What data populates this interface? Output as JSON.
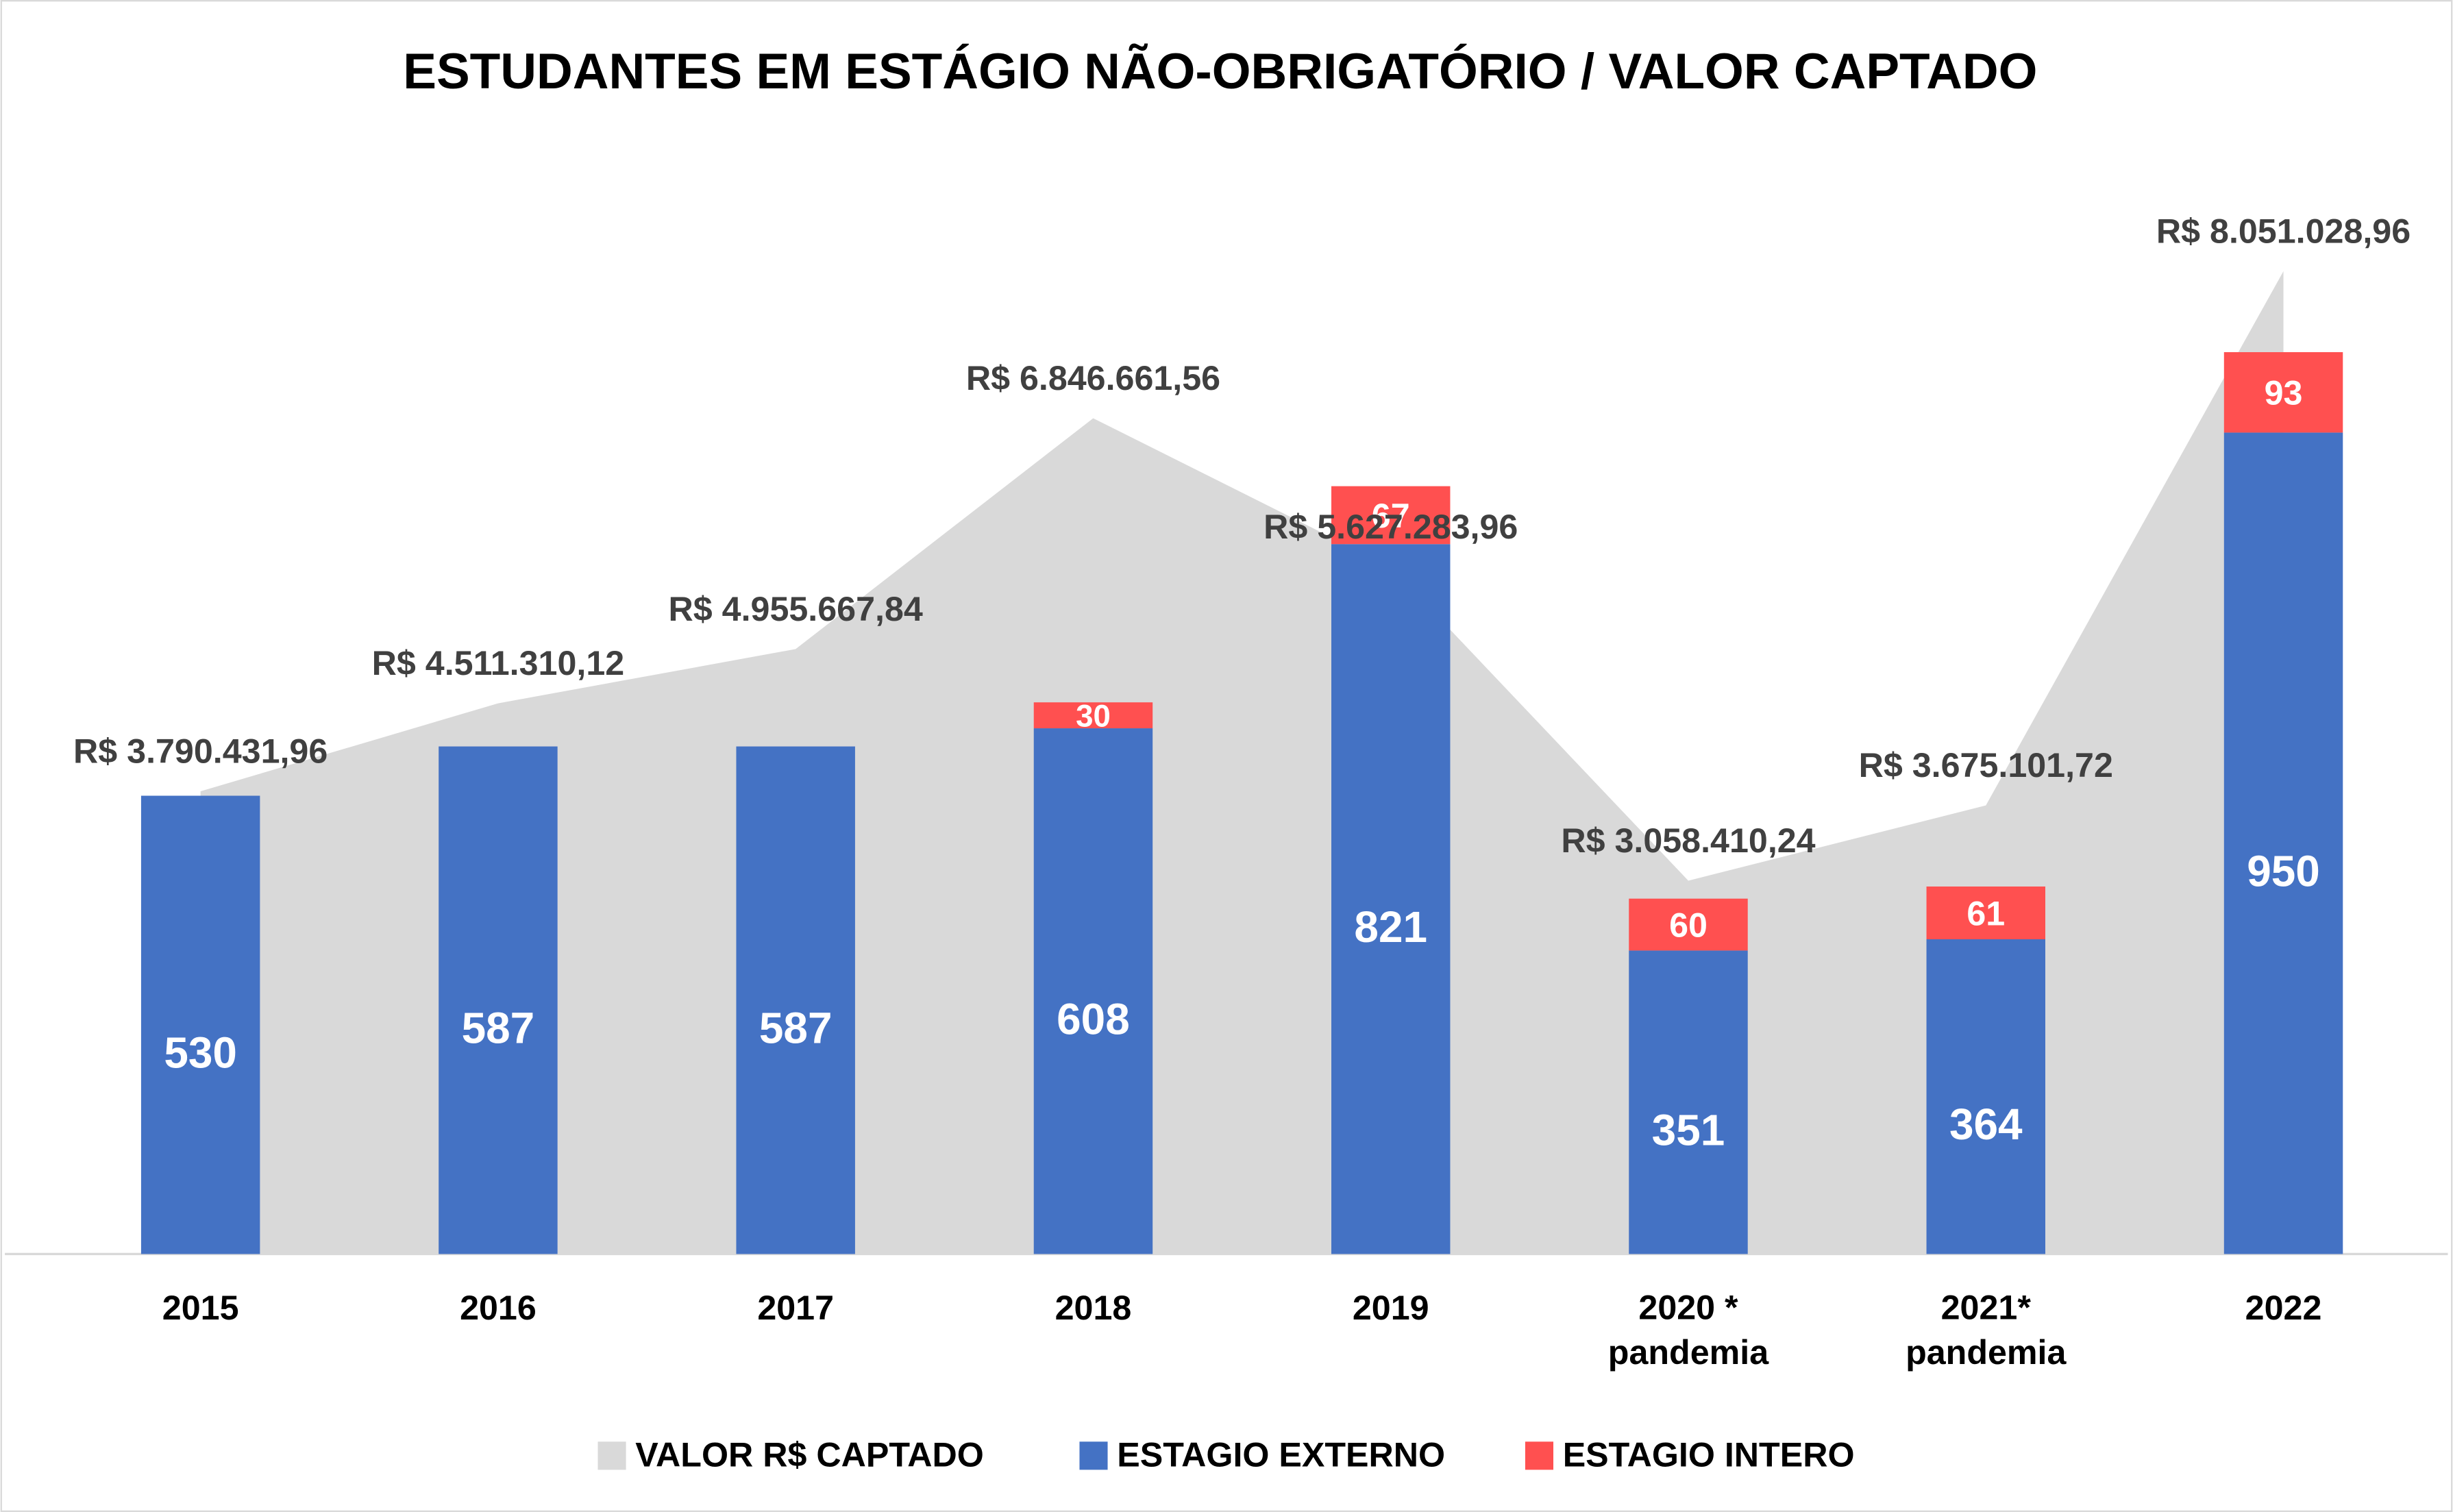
{
  "chart_data": {
    "type": "bar",
    "stacked": true,
    "title": "ESTUDANTES EM ESTÁGIO NÃO-OBRIGATÓRIO / VALOR CAPTADO",
    "categories": [
      "2015",
      "2016",
      "2017",
      "2018",
      "2019",
      "2020 *\npandemia",
      "2021*\npandemia",
      "2022"
    ],
    "ylim": [
      0,
      1200
    ],
    "y2lim": [
      0,
      8500000
    ],
    "series": [
      {
        "name": "VALOR R$ CAPTADO",
        "type": "area",
        "axis": "y2",
        "color": "#d9d9d9",
        "values": [
          3790431.96,
          4511310.12,
          4955667.84,
          6846661.56,
          5627283.96,
          3058410.24,
          3675101.72,
          8051028.96
        ],
        "value_labels": [
          "R$ 3.790.431,96",
          "R$ 4.511.310,12",
          "R$ 4.955.667,84",
          "R$ 6.846.661,56",
          "R$ 5.627.283,96",
          "R$ 3.058.410,24",
          "R$ 3.675.101,72",
          "R$ 8.051.028,96"
        ]
      },
      {
        "name": "ESTAGIO EXTERNO",
        "color": "#4472c4",
        "values": [
          530,
          587,
          587,
          608,
          821,
          351,
          364,
          950
        ]
      },
      {
        "name": "ESTAGIO INTERO",
        "color": "#ff5050",
        "values": [
          null,
          null,
          null,
          30,
          67,
          60,
          61,
          93
        ]
      }
    ],
    "legend": "bottom"
  }
}
